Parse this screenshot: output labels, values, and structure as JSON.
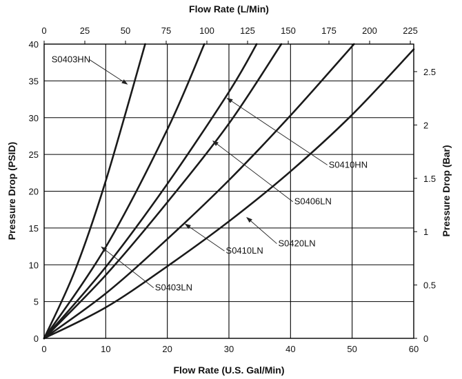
{
  "chart_data": {
    "type": "line",
    "xlabel": "Flow Rate (U.S. Gal/Min)",
    "ylabel": "Pressure Drop (PSID)",
    "x2label": "Flow Rate (L/Min)",
    "y2label": "Pressure Drop (Bar)",
    "xlim": [
      0,
      60
    ],
    "ylim": [
      0,
      40
    ],
    "x2lim": [
      0,
      227.1
    ],
    "y2lim": [
      0,
      2.758
    ],
    "grid": true,
    "x_ticks": [
      0,
      10,
      20,
      30,
      40,
      50,
      60
    ],
    "y_ticks": [
      0,
      5,
      10,
      15,
      20,
      25,
      30,
      35,
      40
    ],
    "x2_ticks": [
      0,
      25,
      50,
      75,
      100,
      125,
      150,
      175,
      200,
      225
    ],
    "y2_ticks": [
      0,
      0.5,
      1,
      1.5,
      2,
      2.5
    ],
    "series": [
      {
        "name": "S0403HN",
        "x": [
          0,
          5,
          10,
          16.4
        ],
        "y": [
          0,
          9.2,
          21.4,
          40
        ]
      },
      {
        "name": "S0403LN",
        "x": [
          0,
          10,
          20,
          26
        ],
        "y": [
          0,
          12.4,
          28.4,
          40
        ]
      },
      {
        "name": "S0410HN",
        "x": [
          0,
          10,
          20,
          30,
          34.5
        ],
        "y": [
          0,
          9.7,
          21,
          33.5,
          40
        ]
      },
      {
        "name": "S0406LN",
        "x": [
          0,
          10,
          20,
          30,
          38.5
        ],
        "y": [
          0,
          8.6,
          18.5,
          29.2,
          40
        ]
      },
      {
        "name": "S0410LN",
        "x": [
          0,
          10,
          20,
          30,
          40,
          50.3
        ],
        "y": [
          0,
          6.1,
          13.5,
          21.5,
          30.3,
          40
        ]
      },
      {
        "name": "S0420LN",
        "x": [
          0,
          10,
          20,
          30,
          40,
          50,
          60
        ],
        "y": [
          0,
          4.2,
          9.8,
          15.9,
          22.7,
          30.4,
          39.3
        ]
      }
    ],
    "annotations": [
      {
        "text": "S0403HN",
        "label_x": 1.2,
        "label_y": 37.5,
        "arrow_x": 13.6,
        "arrow_y": 34.5
      },
      {
        "text": "S0403LN",
        "label_x": 18,
        "label_y": 6.5,
        "arrow_x": 9.2,
        "arrow_y": 12.5
      },
      {
        "text": "S0410HN",
        "label_x": 46.2,
        "label_y": 23.2,
        "arrow_x": 29.6,
        "arrow_y": 32.7
      },
      {
        "text": "S0406LN",
        "label_x": 40.6,
        "label_y": 18.2,
        "arrow_x": 27.3,
        "arrow_y": 26.9
      },
      {
        "text": "S0410LN",
        "label_x": 29.5,
        "label_y": 11.5,
        "arrow_x": 22.8,
        "arrow_y": 15.6
      },
      {
        "text": "S0420LN",
        "label_x": 38,
        "label_y": 12.5,
        "arrow_x": 32.8,
        "arrow_y": 16.5
      }
    ]
  }
}
